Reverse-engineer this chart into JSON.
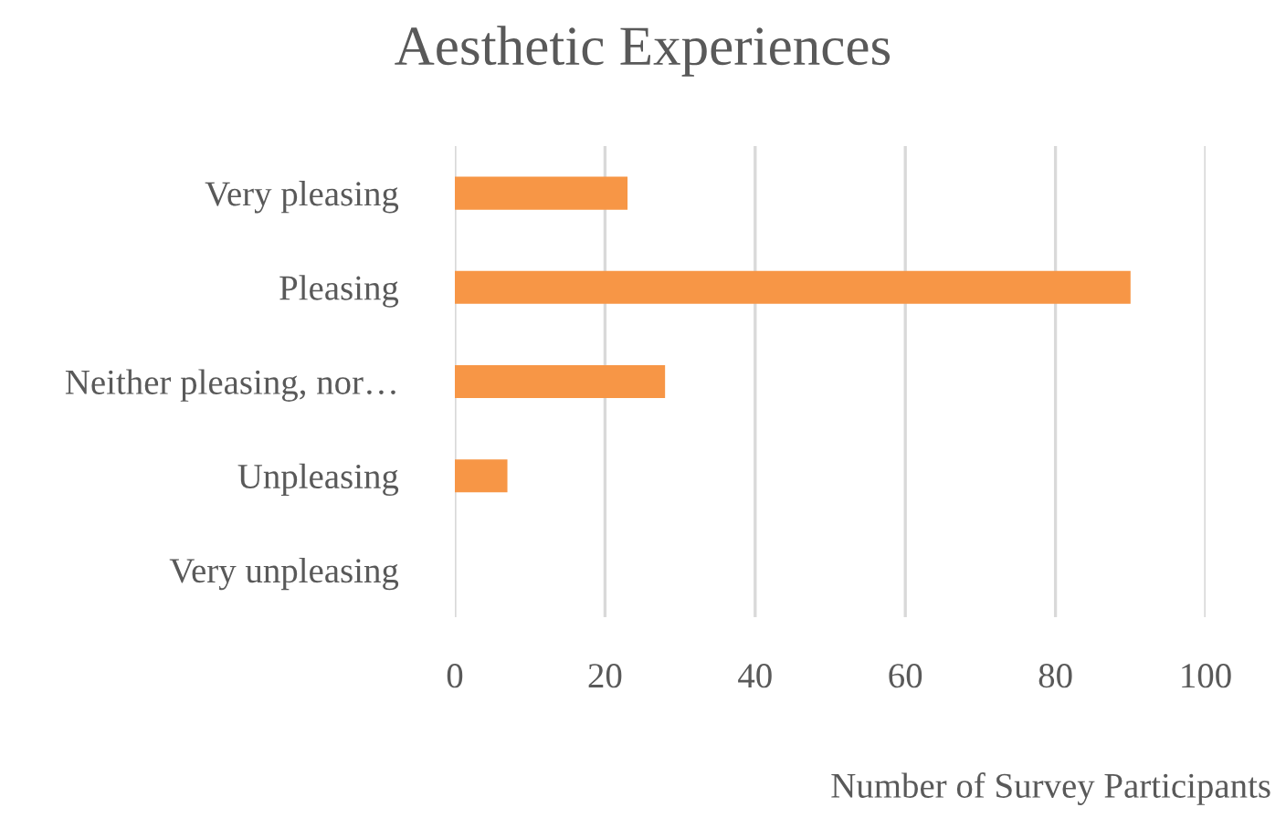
{
  "chart_data": {
    "type": "bar",
    "orientation": "horizontal",
    "title": "Aesthetic Experiences",
    "xlabel": "Number of Survey Participants",
    "categories": [
      "Very pleasing",
      "Pleasing",
      "Neither pleasing, nor…",
      "Unpleasing",
      "Very unpleasing"
    ],
    "values": [
      23,
      90,
      28,
      7,
      0
    ],
    "color": "#f79646",
    "xlim": [
      0,
      100
    ],
    "xticks": [
      0,
      20,
      40,
      60,
      80,
      100
    ],
    "grid": "x",
    "legend": false
  }
}
